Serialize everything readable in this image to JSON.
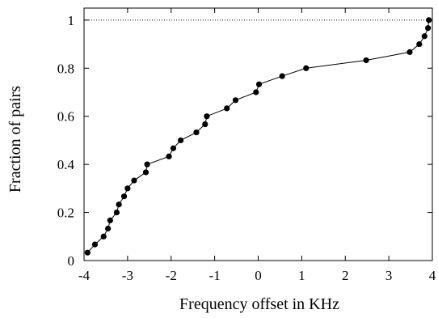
{
  "chart_data": {
    "type": "line",
    "title": "",
    "xlabel": "Frequency offset in KHz",
    "ylabel": "Fraction of pairs",
    "xlim": [
      -4,
      4
    ],
    "ylim": [
      0,
      1.05
    ],
    "x_ticks": [
      -4,
      -3,
      -2,
      -1,
      0,
      1,
      2,
      3,
      4
    ],
    "x_tick_labels": [
      "-4",
      "-3",
      "-2",
      "-1",
      "0",
      "1",
      "2",
      "3",
      "4"
    ],
    "y_ticks": [
      0,
      0.2,
      0.4,
      0.6,
      0.8,
      1
    ],
    "y_tick_labels": [
      "0",
      "0.2",
      "0.4",
      "0.6",
      "0.8",
      "1"
    ],
    "grid": false,
    "legend": "none",
    "reference_lines": [
      {
        "axis": "y",
        "value": 1,
        "style": "dotted"
      }
    ],
    "series": [
      {
        "marker": "circle",
        "color": "#000000",
        "points": [
          [
            -3.92,
            0.033
          ],
          [
            -3.75,
            0.067
          ],
          [
            -3.55,
            0.1
          ],
          [
            -3.45,
            0.133
          ],
          [
            -3.4,
            0.167
          ],
          [
            -3.25,
            0.2
          ],
          [
            -3.2,
            0.233
          ],
          [
            -3.08,
            0.267
          ],
          [
            -3.0,
            0.3
          ],
          [
            -2.85,
            0.333
          ],
          [
            -2.58,
            0.367
          ],
          [
            -2.55,
            0.4
          ],
          [
            -2.05,
            0.433
          ],
          [
            -1.95,
            0.467
          ],
          [
            -1.78,
            0.5
          ],
          [
            -1.42,
            0.533
          ],
          [
            -1.22,
            0.567
          ],
          [
            -1.18,
            0.6
          ],
          [
            -0.72,
            0.633
          ],
          [
            -0.52,
            0.667
          ],
          [
            -0.05,
            0.7
          ],
          [
            0.02,
            0.733
          ],
          [
            0.55,
            0.767
          ],
          [
            1.1,
            0.8
          ],
          [
            2.48,
            0.833
          ],
          [
            3.48,
            0.867
          ],
          [
            3.7,
            0.9
          ],
          [
            3.82,
            0.933
          ],
          [
            3.9,
            0.967
          ],
          [
            3.92,
            1.0
          ]
        ]
      }
    ]
  }
}
